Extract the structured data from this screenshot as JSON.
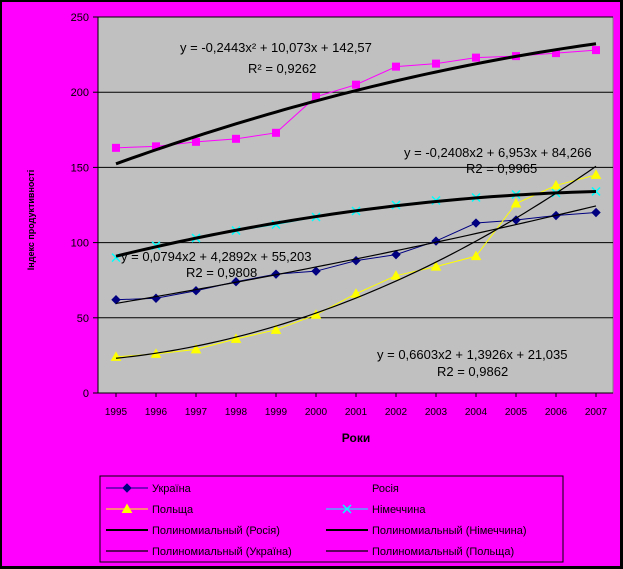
{
  "chart_data": {
    "type": "line",
    "title": "",
    "xlabel": "Роки",
    "ylabel": "Індекс продуктивності",
    "x": [
      "1995",
      "1996",
      "1997",
      "1998",
      "1999",
      "2000",
      "2001",
      "2002",
      "2003",
      "2004",
      "2005",
      "2006",
      "2007"
    ],
    "ylim": [
      0,
      250
    ],
    "yticks": [
      "0",
      "50",
      "100",
      "150",
      "200",
      "250"
    ],
    "grid": true,
    "legend_position": "bottom",
    "series": [
      {
        "name": "Україна",
        "color": "#000080",
        "marker": "diamond",
        "values": [
          62,
          63,
          68,
          74,
          79,
          81,
          88,
          92,
          101,
          113,
          115,
          118,
          120
        ]
      },
      {
        "name": "Росія",
        "color": "#ff00ff",
        "marker": "square",
        "values": [
          163,
          164,
          167,
          169,
          173,
          197,
          205,
          217,
          219,
          223,
          224,
          226,
          228
        ]
      },
      {
        "name": "Польща",
        "color": "#ffff00",
        "marker": "triangle",
        "values": [
          24,
          26,
          29,
          36,
          42,
          52,
          66,
          78,
          84,
          91,
          126,
          138,
          145
        ]
      },
      {
        "name": "Німеччина",
        "color": "#00ffff",
        "marker": "x",
        "values": [
          90,
          98,
          103,
          108,
          112,
          117,
          121,
          125,
          128,
          130,
          132,
          133,
          134
        ]
      }
    ],
    "trendlines": [
      {
        "name": "Полиномиальный (Росія)",
        "color": "#000000",
        "width": 3,
        "a": -0.2443,
        "b": 10.073,
        "c": 142.57,
        "equation": "y = -0,2443x² + 10,073x + 142,57",
        "r2": "R² = 0,9262"
      },
      {
        "name": "Полиномиальный (Німеччина)",
        "color": "#000000",
        "width": 3,
        "a": -0.2408,
        "b": 6.953,
        "c": 84.266,
        "equation": "y = -0,2408x2 + 6,953x + 84,266",
        "r2": "R2 = 0,9965"
      },
      {
        "name": "Полиномиальный (Україна)",
        "color": "#000000",
        "width": 1.2,
        "a": 0.0794,
        "b": 4.2892,
        "c": 55.203,
        "equation": "y = 0,0794x2 + 4,2892x + 55,203",
        "r2": "R2 = 0,9808"
      },
      {
        "name": "Полиномиальный (Польща)",
        "color": "#000000",
        "width": 1.2,
        "a": 0.6603,
        "b": 1.3926,
        "c": 21.035,
        "equation": "y = 0,6603x2 + 1,3926x + 21,035",
        "r2": "R2 = 0,9862"
      }
    ]
  },
  "legend": {
    "items": [
      {
        "label": "Україна",
        "key": "ukraine"
      },
      {
        "label": "Росія",
        "key": "russia"
      },
      {
        "label": "Польща",
        "key": "poland"
      },
      {
        "label": "Німеччина",
        "key": "germany"
      },
      {
        "label": "Полиномиальный (Росія)",
        "key": "trend-russia"
      },
      {
        "label": "Полиномиальный (Німеччина)",
        "key": "trend-germany"
      },
      {
        "label": "Полиномиальный (Україна)",
        "key": "trend-ukraine"
      },
      {
        "label": "Полиномиальный (Польща)",
        "key": "trend-poland"
      }
    ]
  }
}
